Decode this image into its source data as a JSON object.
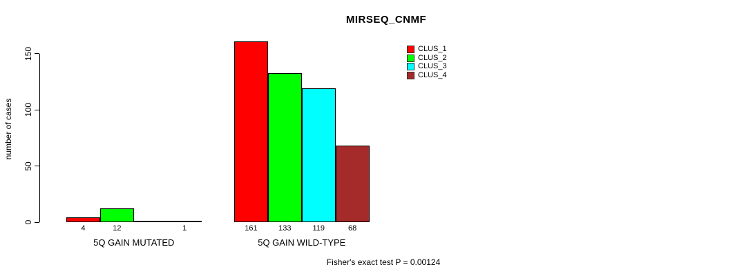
{
  "chart_data": {
    "type": "bar",
    "title": "MIRSEQ_CNMF",
    "ylabel": "number of cases",
    "xlabel": "",
    "yticks": [
      0,
      50,
      100,
      150
    ],
    "ylim": [
      0,
      165
    ],
    "grid": false,
    "legend_position": "top-right",
    "categories": [
      "5Q GAIN MUTATED",
      "5Q GAIN WILD-TYPE"
    ],
    "series": [
      {
        "name": "CLUS_1",
        "color": "#FF0000",
        "values": [
          4,
          161
        ]
      },
      {
        "name": "CLUS_2",
        "color": "#00FF00",
        "values": [
          12,
          133
        ]
      },
      {
        "name": "CLUS_3",
        "color": "#00FFFF",
        "values": [
          0,
          119
        ]
      },
      {
        "name": "CLUS_4",
        "color": "#A52A2A",
        "values": [
          1,
          68
        ]
      }
    ],
    "bar_value_labels": [
      [
        "4",
        "12",
        "",
        "1"
      ],
      [
        "161",
        "133",
        "119",
        "68"
      ]
    ],
    "annotation": "Fisher's exact test P = 0.00124"
  }
}
